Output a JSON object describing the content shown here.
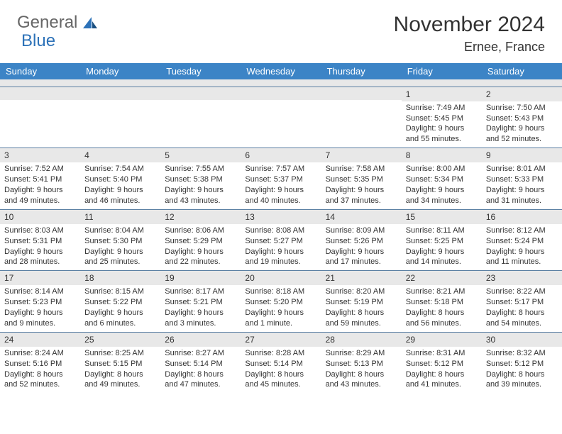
{
  "brand": {
    "part1": "General",
    "part2": "Blue"
  },
  "title": "November 2024",
  "location": "Ernee, France",
  "colors": {
    "header_bg": "#3c84c6",
    "header_text": "#ffffff",
    "daynum_bg": "#e8e8e8",
    "border": "#5a7fa3",
    "logo_blue": "#2d72b8",
    "text": "#333333"
  },
  "weekdays": [
    "Sunday",
    "Monday",
    "Tuesday",
    "Wednesday",
    "Thursday",
    "Friday",
    "Saturday"
  ],
  "weeks": [
    [
      {
        "n": "",
        "sr": "",
        "ss": "",
        "dl": ""
      },
      {
        "n": "",
        "sr": "",
        "ss": "",
        "dl": ""
      },
      {
        "n": "",
        "sr": "",
        "ss": "",
        "dl": ""
      },
      {
        "n": "",
        "sr": "",
        "ss": "",
        "dl": ""
      },
      {
        "n": "",
        "sr": "",
        "ss": "",
        "dl": ""
      },
      {
        "n": "1",
        "sr": "Sunrise: 7:49 AM",
        "ss": "Sunset: 5:45 PM",
        "dl": "Daylight: 9 hours and 55 minutes."
      },
      {
        "n": "2",
        "sr": "Sunrise: 7:50 AM",
        "ss": "Sunset: 5:43 PM",
        "dl": "Daylight: 9 hours and 52 minutes."
      }
    ],
    [
      {
        "n": "3",
        "sr": "Sunrise: 7:52 AM",
        "ss": "Sunset: 5:41 PM",
        "dl": "Daylight: 9 hours and 49 minutes."
      },
      {
        "n": "4",
        "sr": "Sunrise: 7:54 AM",
        "ss": "Sunset: 5:40 PM",
        "dl": "Daylight: 9 hours and 46 minutes."
      },
      {
        "n": "5",
        "sr": "Sunrise: 7:55 AM",
        "ss": "Sunset: 5:38 PM",
        "dl": "Daylight: 9 hours and 43 minutes."
      },
      {
        "n": "6",
        "sr": "Sunrise: 7:57 AM",
        "ss": "Sunset: 5:37 PM",
        "dl": "Daylight: 9 hours and 40 minutes."
      },
      {
        "n": "7",
        "sr": "Sunrise: 7:58 AM",
        "ss": "Sunset: 5:35 PM",
        "dl": "Daylight: 9 hours and 37 minutes."
      },
      {
        "n": "8",
        "sr": "Sunrise: 8:00 AM",
        "ss": "Sunset: 5:34 PM",
        "dl": "Daylight: 9 hours and 34 minutes."
      },
      {
        "n": "9",
        "sr": "Sunrise: 8:01 AM",
        "ss": "Sunset: 5:33 PM",
        "dl": "Daylight: 9 hours and 31 minutes."
      }
    ],
    [
      {
        "n": "10",
        "sr": "Sunrise: 8:03 AM",
        "ss": "Sunset: 5:31 PM",
        "dl": "Daylight: 9 hours and 28 minutes."
      },
      {
        "n": "11",
        "sr": "Sunrise: 8:04 AM",
        "ss": "Sunset: 5:30 PM",
        "dl": "Daylight: 9 hours and 25 minutes."
      },
      {
        "n": "12",
        "sr": "Sunrise: 8:06 AM",
        "ss": "Sunset: 5:29 PM",
        "dl": "Daylight: 9 hours and 22 minutes."
      },
      {
        "n": "13",
        "sr": "Sunrise: 8:08 AM",
        "ss": "Sunset: 5:27 PM",
        "dl": "Daylight: 9 hours and 19 minutes."
      },
      {
        "n": "14",
        "sr": "Sunrise: 8:09 AM",
        "ss": "Sunset: 5:26 PM",
        "dl": "Daylight: 9 hours and 17 minutes."
      },
      {
        "n": "15",
        "sr": "Sunrise: 8:11 AM",
        "ss": "Sunset: 5:25 PM",
        "dl": "Daylight: 9 hours and 14 minutes."
      },
      {
        "n": "16",
        "sr": "Sunrise: 8:12 AM",
        "ss": "Sunset: 5:24 PM",
        "dl": "Daylight: 9 hours and 11 minutes."
      }
    ],
    [
      {
        "n": "17",
        "sr": "Sunrise: 8:14 AM",
        "ss": "Sunset: 5:23 PM",
        "dl": "Daylight: 9 hours and 9 minutes."
      },
      {
        "n": "18",
        "sr": "Sunrise: 8:15 AM",
        "ss": "Sunset: 5:22 PM",
        "dl": "Daylight: 9 hours and 6 minutes."
      },
      {
        "n": "19",
        "sr": "Sunrise: 8:17 AM",
        "ss": "Sunset: 5:21 PM",
        "dl": "Daylight: 9 hours and 3 minutes."
      },
      {
        "n": "20",
        "sr": "Sunrise: 8:18 AM",
        "ss": "Sunset: 5:20 PM",
        "dl": "Daylight: 9 hours and 1 minute."
      },
      {
        "n": "21",
        "sr": "Sunrise: 8:20 AM",
        "ss": "Sunset: 5:19 PM",
        "dl": "Daylight: 8 hours and 59 minutes."
      },
      {
        "n": "22",
        "sr": "Sunrise: 8:21 AM",
        "ss": "Sunset: 5:18 PM",
        "dl": "Daylight: 8 hours and 56 minutes."
      },
      {
        "n": "23",
        "sr": "Sunrise: 8:22 AM",
        "ss": "Sunset: 5:17 PM",
        "dl": "Daylight: 8 hours and 54 minutes."
      }
    ],
    [
      {
        "n": "24",
        "sr": "Sunrise: 8:24 AM",
        "ss": "Sunset: 5:16 PM",
        "dl": "Daylight: 8 hours and 52 minutes."
      },
      {
        "n": "25",
        "sr": "Sunrise: 8:25 AM",
        "ss": "Sunset: 5:15 PM",
        "dl": "Daylight: 8 hours and 49 minutes."
      },
      {
        "n": "26",
        "sr": "Sunrise: 8:27 AM",
        "ss": "Sunset: 5:14 PM",
        "dl": "Daylight: 8 hours and 47 minutes."
      },
      {
        "n": "27",
        "sr": "Sunrise: 8:28 AM",
        "ss": "Sunset: 5:14 PM",
        "dl": "Daylight: 8 hours and 45 minutes."
      },
      {
        "n": "28",
        "sr": "Sunrise: 8:29 AM",
        "ss": "Sunset: 5:13 PM",
        "dl": "Daylight: 8 hours and 43 minutes."
      },
      {
        "n": "29",
        "sr": "Sunrise: 8:31 AM",
        "ss": "Sunset: 5:12 PM",
        "dl": "Daylight: 8 hours and 41 minutes."
      },
      {
        "n": "30",
        "sr": "Sunrise: 8:32 AM",
        "ss": "Sunset: 5:12 PM",
        "dl": "Daylight: 8 hours and 39 minutes."
      }
    ]
  ]
}
